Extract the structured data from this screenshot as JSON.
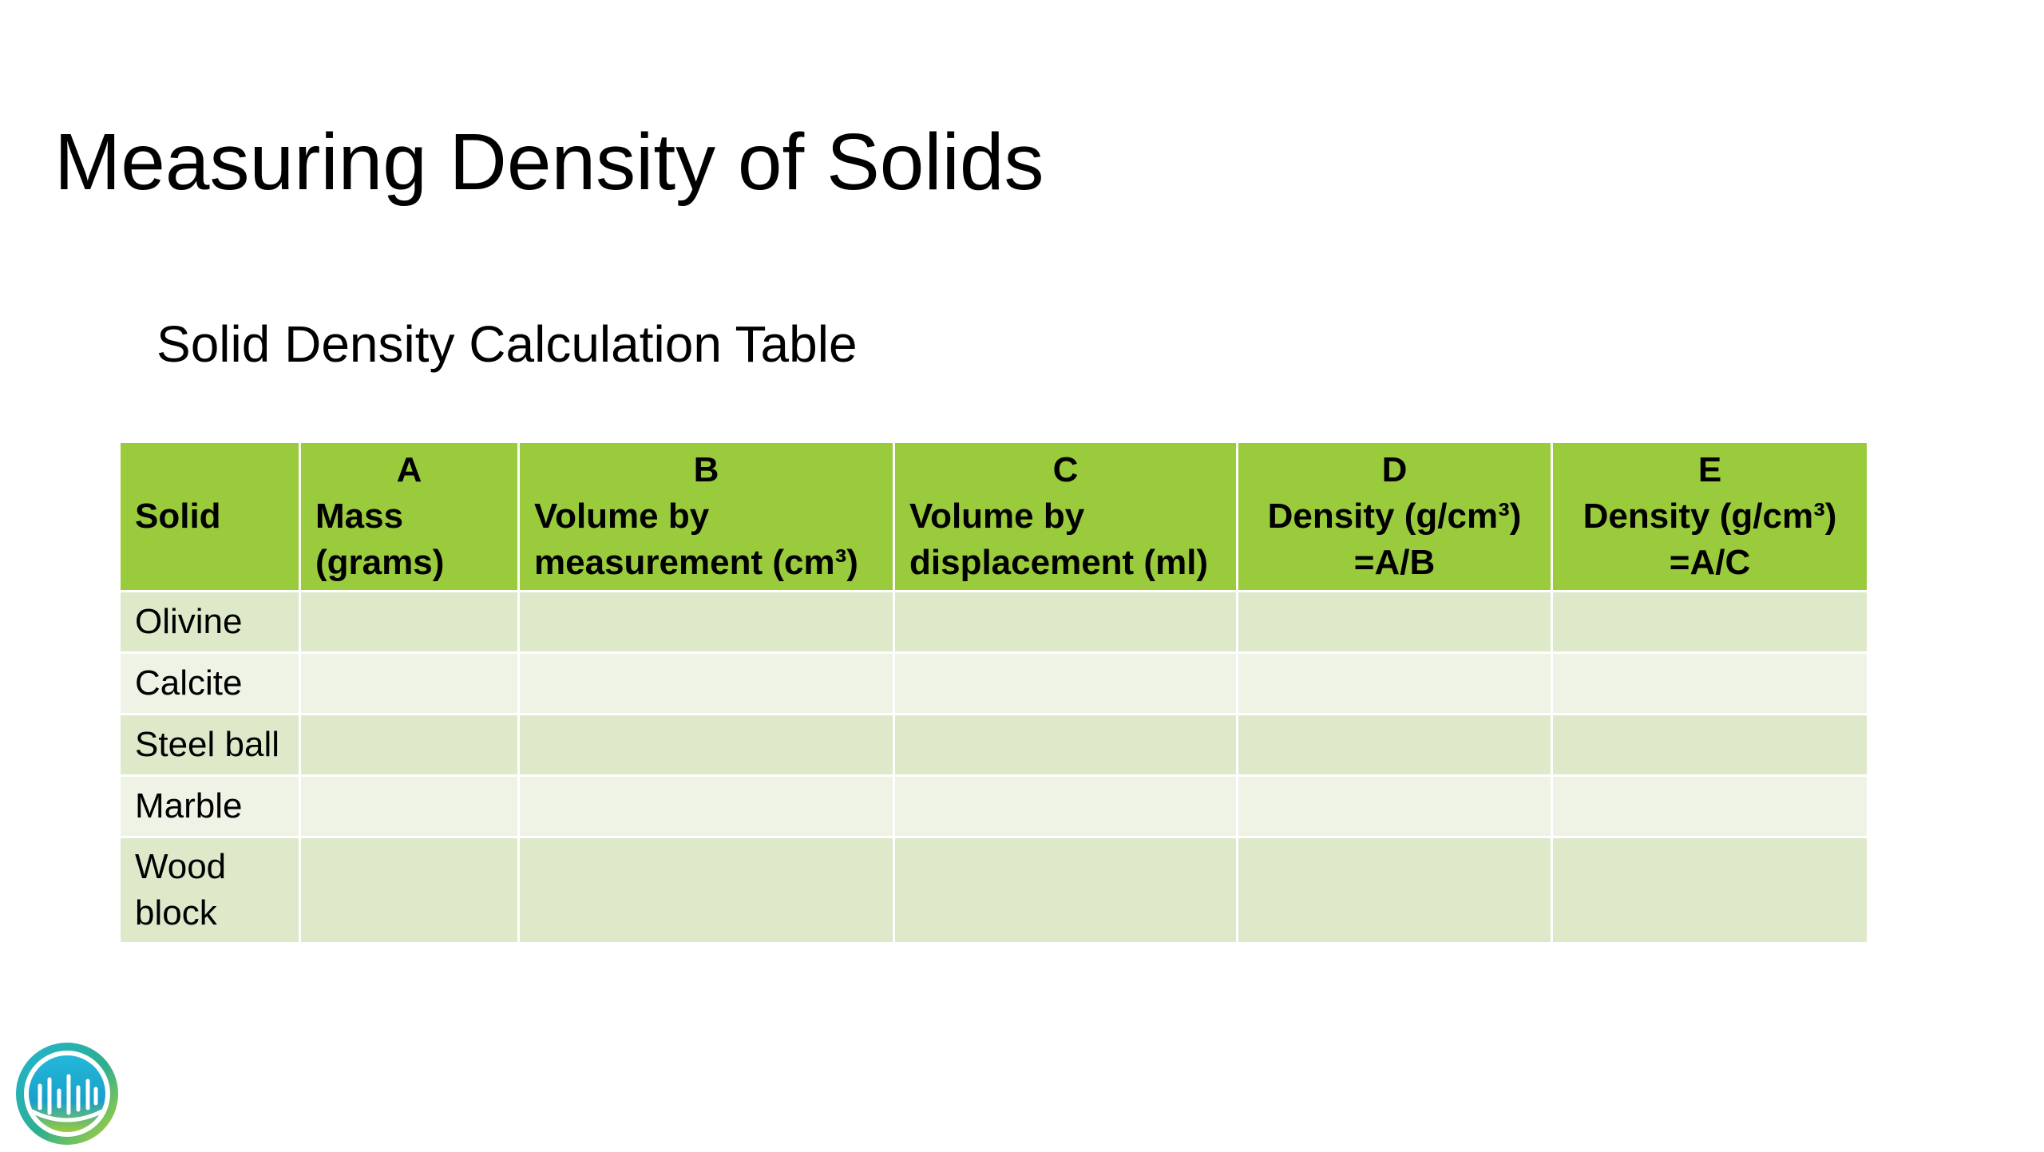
{
  "slide": {
    "title": "Measuring Density of Solids",
    "caption": "Solid Density Calculation Table"
  },
  "table": {
    "columns": [
      {
        "letter": "",
        "label": "Solid"
      },
      {
        "letter": "A",
        "label": "Mass (grams)"
      },
      {
        "letter": "B",
        "label": "Volume by measurement (cm³)"
      },
      {
        "letter": "C",
        "label": "Volume by displacement (ml)"
      },
      {
        "letter": "D",
        "label": "Density (g/cm³) =A/B"
      },
      {
        "letter": "E",
        "label": "Density (g/cm³) =A/C"
      }
    ],
    "rows": [
      {
        "solid": "Olivine",
        "cells": [
          "",
          "",
          "",
          "",
          ""
        ]
      },
      {
        "solid": "Calcite",
        "cells": [
          "",
          "",
          "",
          "",
          ""
        ]
      },
      {
        "solid": "Steel ball",
        "cells": [
          "",
          "",
          "",
          "",
          ""
        ]
      },
      {
        "solid": "Marble",
        "cells": [
          "",
          "",
          "",
          "",
          ""
        ]
      },
      {
        "solid": "Wood block",
        "cells": [
          "",
          "",
          "",
          "",
          ""
        ]
      }
    ]
  },
  "colors": {
    "header_green": "#9acb3c",
    "row_dark": "#dee9ca",
    "row_light": "#eef3e6"
  },
  "logo": {
    "icon": "waveform-circle-logo"
  }
}
